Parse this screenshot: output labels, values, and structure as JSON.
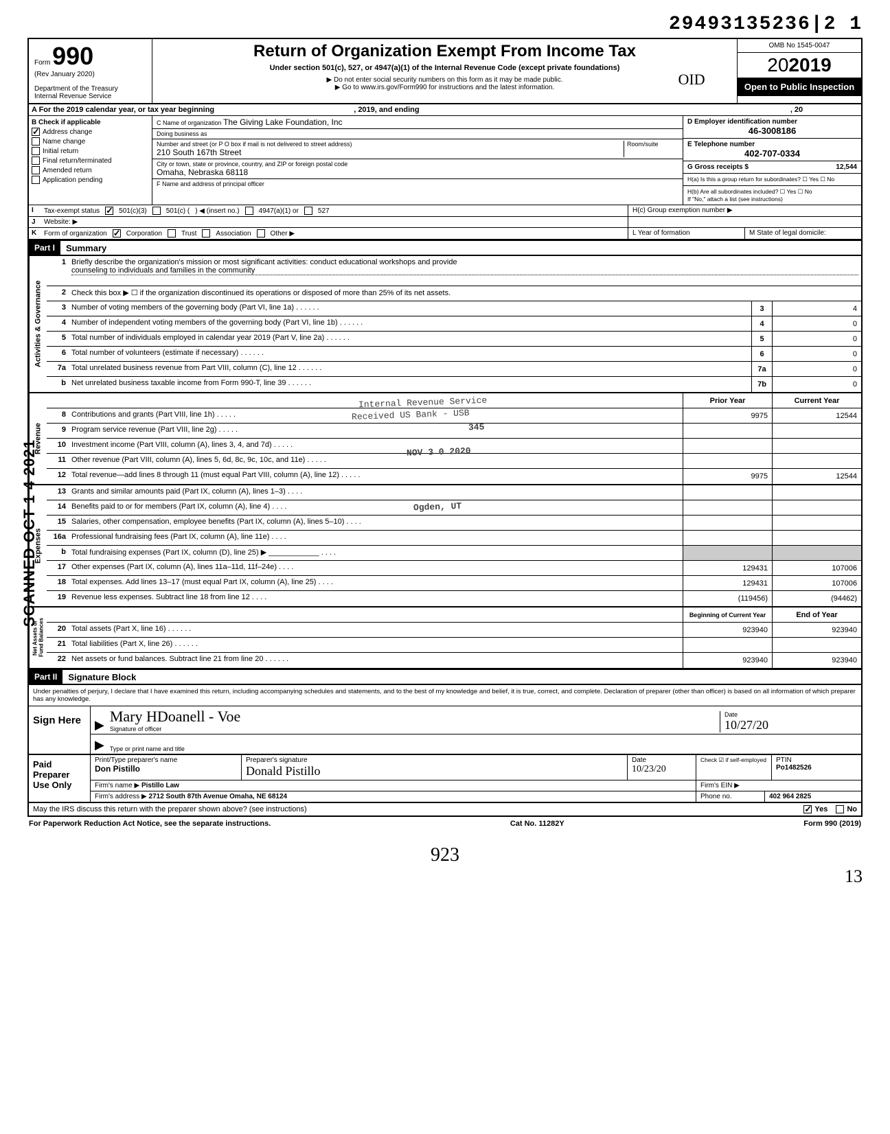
{
  "top_number": "29493135236|2  1",
  "header": {
    "form_label": "Form",
    "form_number": "990",
    "rev": "(Rev January 2020)",
    "dept": "Department of the Treasury",
    "irs": "Internal Revenue Service",
    "title": "Return of Organization Exempt From Income Tax",
    "subtitle": "Under section 501(c), 527, or 4947(a)(1) of the Internal Revenue Code (except private foundations)",
    "note1": "▶ Do not enter social security numbers on this form as it may be made public.",
    "note2": "▶ Go to www.irs.gov/Form990 for instructions and the latest information.",
    "omb": "OMB No 1545-0047",
    "year": "2019",
    "open": "Open to Public Inspection"
  },
  "row_a": {
    "left": "A   For the 2019 calendar year, or tax year beginning",
    "mid": ", 2019, and ending",
    "right": ", 20"
  },
  "col_b": {
    "hdr": "B   Check if applicable",
    "items": [
      {
        "checked": true,
        "label": "Address change"
      },
      {
        "checked": false,
        "label": "Name change"
      },
      {
        "checked": false,
        "label": "Initial return"
      },
      {
        "checked": false,
        "label": "Final return/terminated"
      },
      {
        "checked": false,
        "label": "Amended return"
      },
      {
        "checked": false,
        "label": "Application pending"
      }
    ]
  },
  "col_c": {
    "name_lbl": "C Name of organization",
    "name_val": "The Giving Lake Foundation, Inc",
    "dba_lbl": "Doing business as",
    "street_lbl": "Number and street (or P O box if mail is not delivered to street address)",
    "room_lbl": "Room/suite",
    "street_val": "210 South 167th Street",
    "city_lbl": "City or town, state or province, country, and ZIP or foreign postal code",
    "city_val": "Omaha, Nebraska 68118",
    "officer_lbl": "F Name and address of principal officer"
  },
  "col_d": {
    "ein_lbl": "D Employer identification number",
    "ein_val": "46-3008186",
    "phone_lbl": "E Telephone number",
    "phone_val": "402-707-0334",
    "gross_lbl": "G Gross receipts $",
    "gross_val": "12,544",
    "ha": "H(a) Is this a group return for subordinates?  ☐ Yes  ☐ No",
    "hb": "H(b) Are all subordinates included?  ☐ Yes  ☐ No",
    "hb2": "If \"No,\" attach a list (see instructions)",
    "hc": "H(c) Group exemption number ▶"
  },
  "row_i": {
    "lab": "I",
    "label": "Tax-exempt status",
    "c3": "501(c)(3)",
    "c": "501(c) (",
    "insert": ") ◀ (insert no.)",
    "a1": "4947(a)(1) or",
    "527": "527"
  },
  "row_j": {
    "lab": "J",
    "label": "Website: ▶"
  },
  "row_k": {
    "lab": "K",
    "label": "Form of organization",
    "corp": "Corporation",
    "trust": "Trust",
    "assoc": "Association",
    "other": "Other ▶",
    "l": "L Year of formation",
    "m": "M State of legal domicile:"
  },
  "part1": {
    "hdr": "Part I",
    "title": "Summary",
    "line1": "Briefly describe the organization's mission or most significant activities:",
    "line1_val": "conduct educational workshops and provide",
    "line1_val2": "counseling to individuals and families in the community",
    "line2": "Check this box ▶ ☐ if the organization discontinued its operations or disposed of more than 25% of its net assets.",
    "lines_ag": [
      {
        "n": "3",
        "d": "Number of voting members of the governing body (Part VI, line 1a)",
        "box": "3",
        "v": "4"
      },
      {
        "n": "4",
        "d": "Number of independent voting members of the governing body (Part VI, line 1b)",
        "box": "4",
        "v": "0"
      },
      {
        "n": "5",
        "d": "Total number of individuals employed in calendar year 2019 (Part V, line 2a)",
        "box": "5",
        "v": "0"
      },
      {
        "n": "6",
        "d": "Total number of volunteers (estimate if necessary)",
        "box": "6",
        "v": "0"
      },
      {
        "n": "7a",
        "d": "Total unrelated business revenue from Part VIII, column (C), line 12",
        "box": "7a",
        "v": "0"
      },
      {
        "n": "b",
        "d": "Net unrelated business taxable income from Form 990-T, line 39",
        "box": "7b",
        "v": "0"
      }
    ],
    "col_prior": "Prior Year",
    "col_curr": "Current Year",
    "lines_rev": [
      {
        "n": "8",
        "d": "Contributions and grants (Part VIII, line 1h)",
        "p": "9975",
        "c": "12544"
      },
      {
        "n": "9",
        "d": "Program service revenue (Part VIII, line 2g)",
        "p": "",
        "c": ""
      },
      {
        "n": "10",
        "d": "Investment income (Part VIII, column (A), lines 3, 4, and 7d)",
        "p": "",
        "c": ""
      },
      {
        "n": "11",
        "d": "Other revenue (Part VIII, column (A), lines 5, 6d, 8c, 9c, 10c, and 11e)",
        "p": "",
        "c": ""
      },
      {
        "n": "12",
        "d": "Total revenue—add lines 8 through 11 (must equal Part VIII, column (A), line 12)",
        "p": "9975",
        "c": "12544"
      }
    ],
    "lines_exp": [
      {
        "n": "13",
        "d": "Grants and similar amounts paid (Part IX, column (A), lines 1–3)",
        "p": "",
        "c": ""
      },
      {
        "n": "14",
        "d": "Benefits paid to or for members (Part IX, column (A), line 4)",
        "p": "",
        "c": ""
      },
      {
        "n": "15",
        "d": "Salaries, other compensation, employee benefits (Part IX, column (A), lines 5–10)",
        "p": "",
        "c": ""
      },
      {
        "n": "16a",
        "d": "Professional fundraising fees (Part IX, column (A), line 11e)",
        "p": "",
        "c": ""
      },
      {
        "n": "b",
        "d": "Total fundraising expenses (Part IX, column (D), line 25) ▶ ____________",
        "p": "shaded",
        "c": "shaded"
      },
      {
        "n": "17",
        "d": "Other expenses (Part IX, column (A), lines 11a–11d, 11f–24e)",
        "p": "129431",
        "c": "107006"
      },
      {
        "n": "18",
        "d": "Total expenses. Add lines 13–17 (must equal Part IX, column (A), line 25)",
        "p": "129431",
        "c": "107006"
      },
      {
        "n": "19",
        "d": "Revenue less expenses. Subtract line 18 from line 12",
        "p": "(119456)",
        "c": "(94462)"
      }
    ],
    "col_beg": "Beginning of Current Year",
    "col_end": "End of Year",
    "lines_na": [
      {
        "n": "20",
        "d": "Total assets (Part X, line 16)",
        "p": "923940",
        "c": "923940"
      },
      {
        "n": "21",
        "d": "Total liabilities (Part X, line 26)",
        "p": "",
        "c": ""
      },
      {
        "n": "22",
        "d": "Net assets or fund balances. Subtract line 21 from line 20",
        "p": "923940",
        "c": "923940"
      }
    ]
  },
  "stamps": {
    "s1": "Internal Revenue Service",
    "s2": "Received US Bank - USB",
    "s3": "345",
    "s4": "NOV 3 0 2020",
    "s5": "Ogden, UT"
  },
  "part2": {
    "hdr": "Part II",
    "title": "Signature Block",
    "text": "Under penalties of perjury, I declare that I have examined this return, including accompanying schedules and statements, and to the best of my knowledge and belief, it is true, correct, and complete. Declaration of preparer (other than officer) is based on all information of which preparer has any knowledge.",
    "sign": "Sign Here",
    "sig_val": "Mary HDoanell - Voe",
    "sig_lbl": "Signature of officer",
    "date_lbl": "Date",
    "date_val": "10/27/20",
    "type_lbl": "Type or print name and title"
  },
  "paid": {
    "hdr": "Paid Preparer Use Only",
    "name_lbl": "Print/Type preparer's name",
    "name_val": "Don Pistillo",
    "sig_lbl": "Preparer's signature",
    "sig_val": "Donald Pistillo",
    "date_lbl": "Date",
    "date_val": "10/23/20",
    "check_lbl": "Check ☑ if self-employed",
    "ptin_lbl": "PTIN",
    "ptin_val": "Po1482526",
    "firm_lbl": "Firm's name ▶",
    "firm_val": "Pistillo Law",
    "ein_lbl": "Firm's EIN ▶",
    "addr_lbl": "Firm's address ▶",
    "addr_val": "2712 South 87th Avenue Omaha, NE 68124",
    "phone_lbl": "Phone no.",
    "phone_val": "402 964 2825"
  },
  "footer": {
    "q": "May the IRS discuss this return with the preparer shown above? (see instructions)",
    "yes": "Yes",
    "no": "No",
    "pra": "For Paperwork Reduction Act Notice, see the separate instructions.",
    "cat": "Cat No. 11282Y",
    "form": "Form 990 (2019)"
  },
  "scanned": "SCANNED OCT 1 4 2021",
  "bottom_hand": "923",
  "bottom_right": "13",
  "initials": "OID"
}
